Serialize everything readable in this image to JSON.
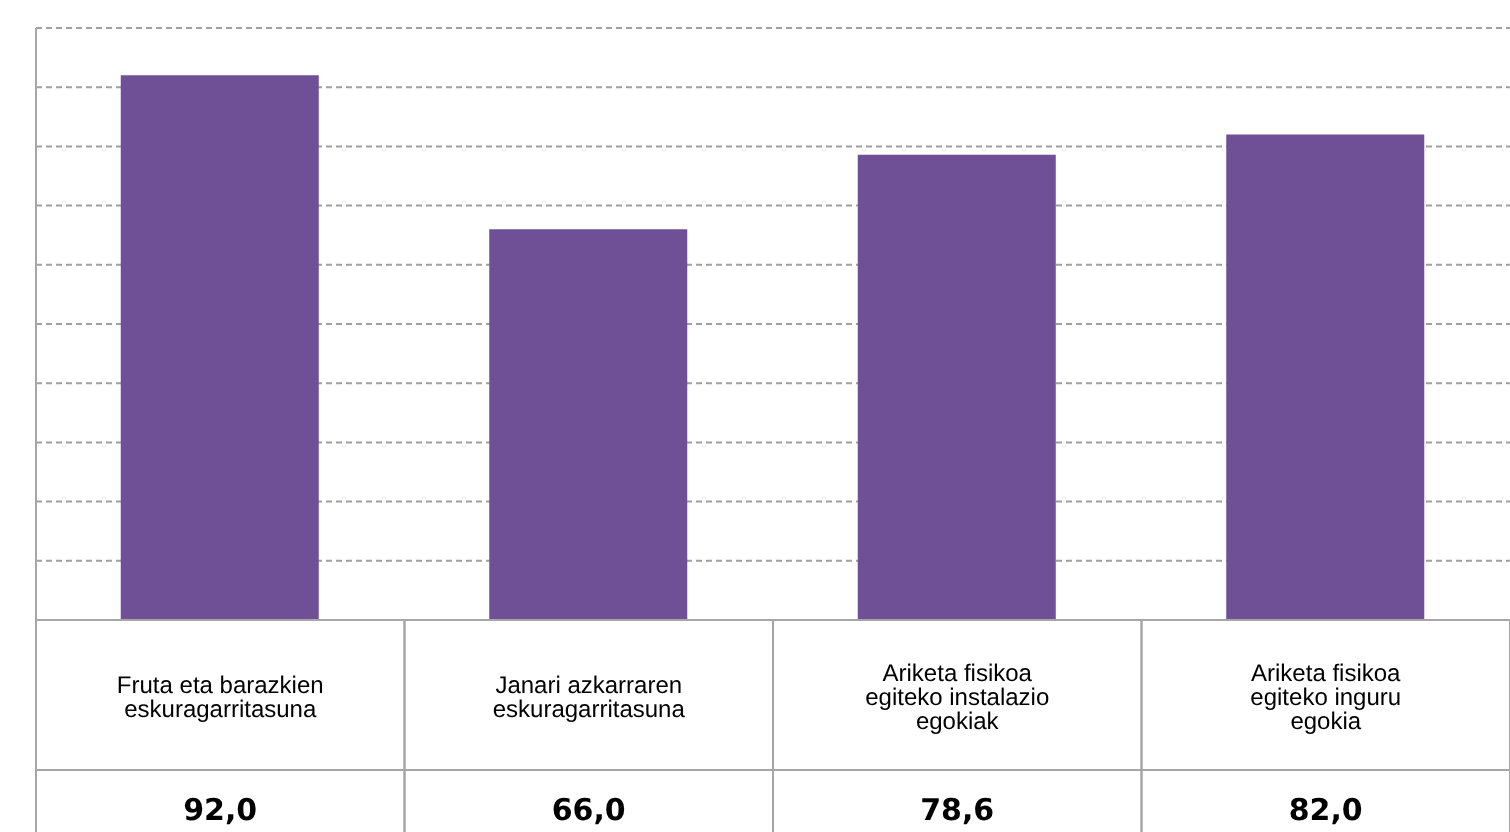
{
  "chart_data": {
    "type": "bar",
    "categories": [
      "Fruta eta barazkien eskuragarritasuna",
      "Janari azkarraren eskuragarritasuna",
      "Ariketa fisikoa egiteko instalazio egokiak",
      "Ariketa fisikoa egiteko inguru egokia"
    ],
    "values": [
      92.0,
      66.0,
      78.6,
      82.0
    ],
    "value_labels": [
      "92,0",
      "66,0",
      "78,6",
      "82,0"
    ],
    "color": "#6f4f96",
    "ylim": [
      0,
      100
    ],
    "yticks": [
      {
        "value": 10,
        "label": null
      },
      {
        "value": 20,
        "label": null
      },
      {
        "value": 30,
        "label": null
      },
      {
        "value": 40,
        "label": null
      },
      {
        "value": 50,
        "label": null
      },
      {
        "value": 60,
        "label": null
      },
      {
        "value": 70,
        "label": null
      },
      {
        "value": 80,
        "label": null
      },
      {
        "value": 90,
        "label": null
      },
      {
        "value": 100,
        "label": null
      }
    ],
    "grid": "y",
    "tick_labels": "x",
    "legend": false
  }
}
